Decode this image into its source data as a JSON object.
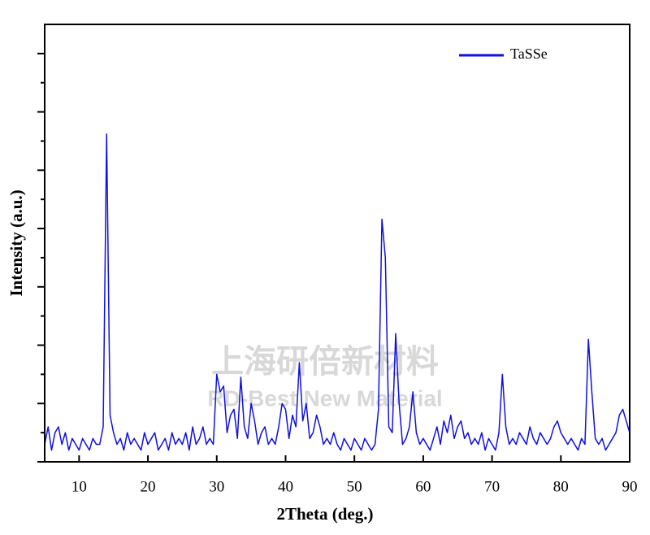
{
  "chart_data": {
    "type": "line",
    "xlabel": "2Theta (deg.)",
    "ylabel": "Intensity (a.u.)",
    "watermark": [
      "上海研倍新材料",
      "RD-Best New Material"
    ],
    "legend": "upper right",
    "xlim": [
      5,
      90
    ],
    "xticks": [
      10,
      20,
      30,
      40,
      50,
      60,
      70,
      80,
      90
    ],
    "ylim": [
      0,
      7.5
    ],
    "yticks": [
      0,
      0.5,
      1,
      1.5,
      2,
      2.5,
      3,
      3.5,
      4,
      4.5,
      5,
      5.5,
      6,
      6.5,
      7
    ],
    "x": [
      5,
      5.5,
      6,
      6.5,
      7,
      7.5,
      8,
      8.5,
      9,
      9.5,
      10,
      10.5,
      11,
      11.5,
      12,
      12.5,
      13,
      13.5,
      14,
      14.5,
      15,
      15.5,
      16,
      16.5,
      17,
      17.5,
      18,
      18.5,
      19,
      19.5,
      20,
      20.5,
      21,
      21.5,
      22,
      22.5,
      23,
      23.5,
      24,
      24.5,
      25,
      25.5,
      26,
      26.5,
      27,
      27.5,
      28,
      28.5,
      29,
      29.5,
      30,
      30.5,
      31,
      31.5,
      32,
      32.5,
      33,
      33.5,
      34,
      34.5,
      35,
      35.5,
      36,
      36.5,
      37,
      37.5,
      38,
      38.5,
      39,
      39.5,
      40,
      40.5,
      41,
      41.5,
      42,
      42.5,
      43,
      43.5,
      44,
      44.5,
      45,
      45.5,
      46,
      46.5,
      47,
      47.5,
      48,
      48.5,
      49,
      49.5,
      50,
      50.5,
      51,
      51.5,
      52,
      52.5,
      53,
      53.5,
      54,
      54.5,
      55,
      55.5,
      56,
      56.5,
      57,
      57.5,
      58,
      58.5,
      59,
      59.5,
      60,
      60.5,
      61,
      61.5,
      62,
      62.5,
      63,
      63.5,
      64,
      64.5,
      65,
      65.5,
      66,
      66.5,
      67,
      67.5,
      68,
      68.5,
      69,
      69.5,
      70,
      70.5,
      71,
      71.5,
      72,
      72.5,
      73,
      73.5,
      74,
      74.5,
      75,
      75.5,
      76,
      76.5,
      77,
      77.5,
      78,
      78.5,
      79,
      79.5,
      80,
      80.5,
      81,
      81.5,
      82,
      82.5,
      83,
      83.5,
      84,
      84.5,
      85,
      85.5,
      86,
      86.5,
      87,
      87.5,
      88,
      88.5,
      89,
      89.5,
      90
    ],
    "series": [
      {
        "name": "TaSSe",
        "color": "#1010e0",
        "values": [
          0.3,
          0.6,
          0.2,
          0.5,
          0.6,
          0.3,
          0.5,
          0.2,
          0.4,
          0.3,
          0.2,
          0.4,
          0.3,
          0.2,
          0.4,
          0.3,
          0.3,
          0.6,
          5.62,
          0.8,
          0.5,
          0.3,
          0.4,
          0.2,
          0.5,
          0.3,
          0.4,
          0.3,
          0.2,
          0.5,
          0.3,
          0.4,
          0.5,
          0.2,
          0.3,
          0.4,
          0.2,
          0.5,
          0.3,
          0.4,
          0.3,
          0.5,
          0.2,
          0.6,
          0.3,
          0.4,
          0.6,
          0.3,
          0.4,
          0.3,
          1.5,
          1.2,
          1.3,
          0.5,
          0.8,
          0.9,
          0.4,
          1.45,
          0.6,
          0.4,
          1.0,
          0.7,
          0.3,
          0.5,
          0.6,
          0.3,
          0.4,
          0.3,
          0.6,
          1.0,
          0.9,
          0.4,
          0.8,
          0.6,
          1.7,
          0.7,
          1.0,
          0.4,
          0.5,
          0.8,
          0.6,
          0.3,
          0.4,
          0.3,
          0.5,
          0.3,
          0.2,
          0.4,
          0.3,
          0.2,
          0.4,
          0.3,
          0.2,
          0.4,
          0.3,
          0.2,
          0.3,
          0.9,
          4.16,
          3.5,
          0.6,
          0.5,
          2.2,
          1.0,
          0.3,
          0.4,
          0.6,
          1.2,
          0.5,
          0.3,
          0.4,
          0.3,
          0.2,
          0.4,
          0.6,
          0.3,
          0.7,
          0.5,
          0.8,
          0.4,
          0.6,
          0.7,
          0.4,
          0.5,
          0.3,
          0.4,
          0.3,
          0.5,
          0.2,
          0.4,
          0.3,
          0.2,
          0.5,
          1.5,
          0.6,
          0.3,
          0.4,
          0.3,
          0.5,
          0.4,
          0.3,
          0.6,
          0.4,
          0.3,
          0.5,
          0.4,
          0.3,
          0.4,
          0.6,
          0.7,
          0.5,
          0.4,
          0.3,
          0.4,
          0.3,
          0.2,
          0.4,
          0.3,
          2.1,
          1.2,
          0.4,
          0.3,
          0.4,
          0.2,
          0.3,
          0.4,
          0.5,
          0.8,
          0.9,
          0.7,
          0.5
        ]
      }
    ]
  }
}
